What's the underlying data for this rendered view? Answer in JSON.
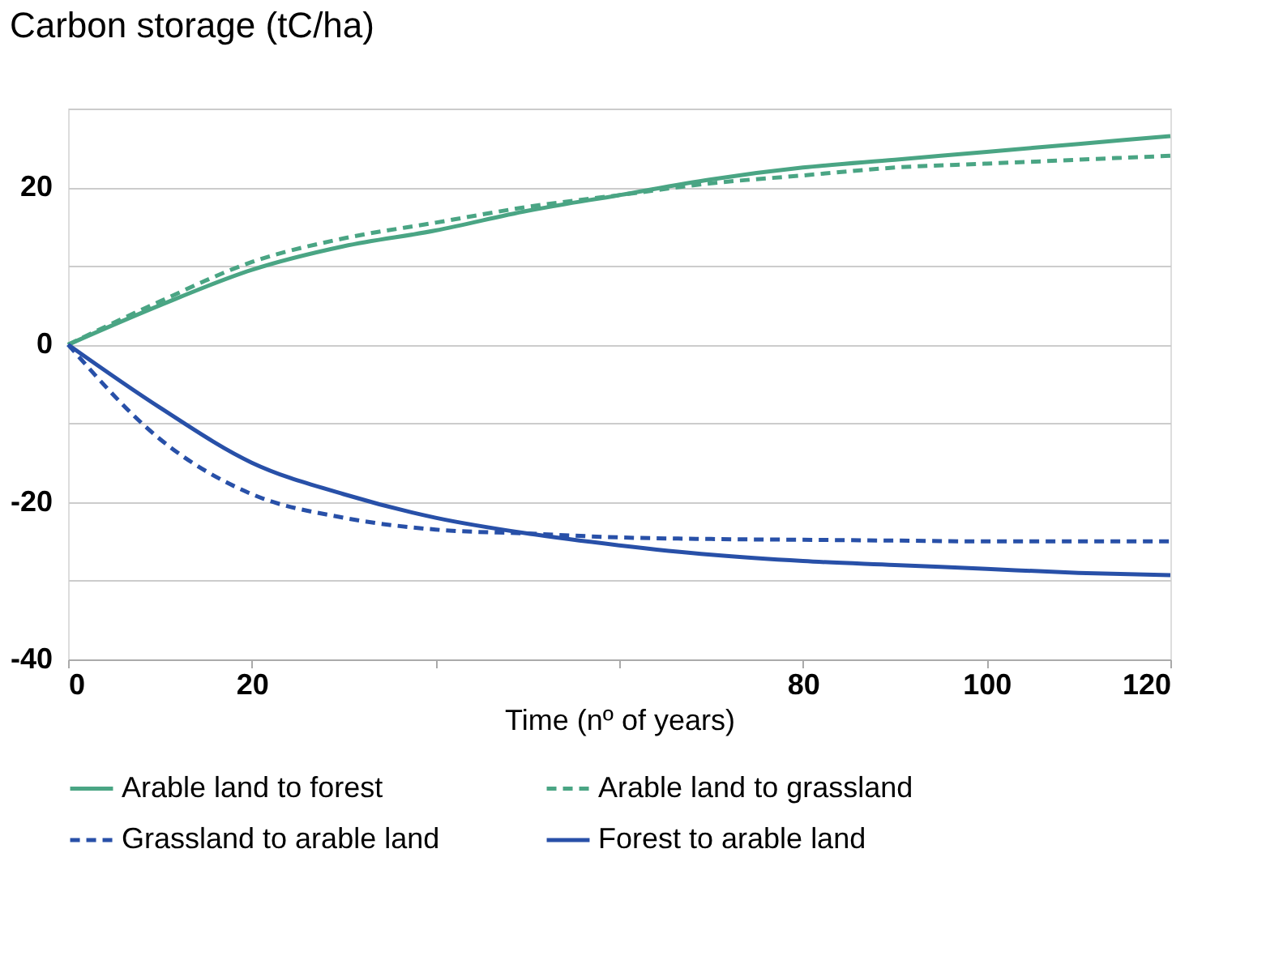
{
  "chart_data": {
    "type": "line",
    "title": "Carbon storage (tC/ha)",
    "xlabel": "Time (nº of years)",
    "x": [
      0,
      10,
      20,
      30,
      40,
      50,
      60,
      70,
      80,
      90,
      100,
      110,
      120
    ],
    "series": [
      {
        "name": "Arable land to forest",
        "color": "#4aa584",
        "line_style": "solid",
        "values": [
          0,
          5,
          9.5,
          12.5,
          14.5,
          17,
          19,
          21,
          22.5,
          23.5,
          24.5,
          25.5,
          26.5
        ]
      },
      {
        "name": "Arable land to grassland",
        "color": "#4aa584",
        "line_style": "dashed",
        "values": [
          0,
          5.5,
          10.5,
          13.5,
          15.5,
          17.5,
          19,
          20.5,
          21.5,
          22.5,
          23,
          23.5,
          24
        ]
      },
      {
        "name": "Grassland to arable land",
        "color": "#2850a8",
        "line_style": "dashed",
        "values": [
          0,
          -12,
          -19,
          -22,
          -23.5,
          -24,
          -24.5,
          -24.7,
          -24.8,
          -24.9,
          -25,
          -25,
          -25
        ]
      },
      {
        "name": "Forest to arable land",
        "color": "#2850a8",
        "line_style": "solid",
        "values": [
          0,
          -8,
          -15,
          -19,
          -22,
          -24,
          -25.5,
          -26.7,
          -27.5,
          -28,
          -28.5,
          -29,
          -29.3
        ]
      }
    ],
    "xlim": [
      0,
      120
    ],
    "xticks": [
      0,
      20,
      {
        "value": 40,
        "label": null
      },
      {
        "value": 60,
        "label": null
      },
      80,
      100,
      120
    ],
    "ylim": [
      -40,
      30
    ],
    "yticks": [
      -40,
      {
        "value": -30,
        "label": null
      },
      -20,
      {
        "value": -10,
        "label": null
      },
      0,
      {
        "value": 10,
        "label": null
      },
      20,
      {
        "value": 30,
        "label": null
      }
    ],
    "grid": "y",
    "legend": "bottom",
    "marker": "none"
  }
}
